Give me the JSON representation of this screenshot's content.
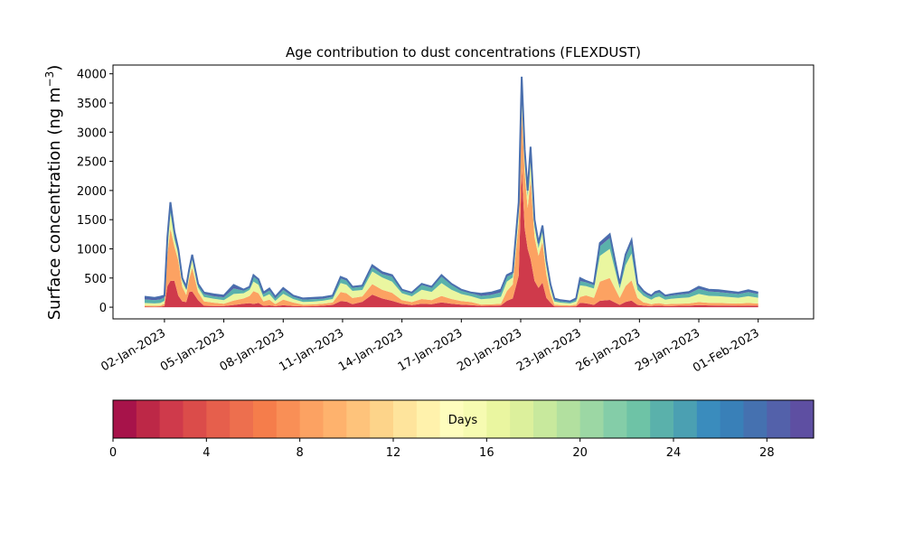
{
  "chart_data": {
    "type": "area",
    "title": "Age contribution to dust concentrations (FLEXDUST)",
    "ylabel_main": "Surface concentration (ng m",
    "ylabel_sup": "−3",
    "ylabel_end": ")",
    "xlabel": "",
    "ylim": [
      -200,
      4150
    ],
    "yticks": [
      0,
      500,
      1000,
      1500,
      2000,
      2500,
      3000,
      3500,
      4000
    ],
    "xlim": [
      -1.6,
      33.8
    ],
    "xticks": [
      {
        "day": 1,
        "label": "02-Jan-2023"
      },
      {
        "day": 4,
        "label": "05-Jan-2023"
      },
      {
        "day": 7,
        "label": "08-Jan-2023"
      },
      {
        "day": 10,
        "label": "11-Jan-2023"
      },
      {
        "day": 13,
        "label": "14-Jan-2023"
      },
      {
        "day": 16,
        "label": "17-Jan-2023"
      },
      {
        "day": 19,
        "label": "20-Jan-2023"
      },
      {
        "day": 22,
        "label": "23-Jan-2023"
      },
      {
        "day": 25,
        "label": "26-Jan-2023"
      },
      {
        "day": 28,
        "label": "29-Jan-2023"
      },
      {
        "day": 31,
        "label": "01-Feb-2023"
      }
    ],
    "x_days_since_01_Jan_2023": [
      0,
      0.5,
      0.8,
      1.0,
      1.15,
      1.3,
      1.5,
      1.7,
      1.9,
      2.1,
      2.25,
      2.4,
      2.7,
      3.0,
      3.5,
      4.0,
      4.5,
      5.0,
      5.3,
      5.5,
      5.75,
      6.0,
      6.3,
      6.6,
      7.0,
      7.5,
      8.0,
      8.5,
      9.0,
      9.5,
      9.9,
      10.2,
      10.5,
      11.0,
      11.5,
      12.0,
      12.5,
      13.0,
      13.5,
      14.0,
      14.5,
      15.0,
      15.5,
      16.0,
      16.5,
      17.0,
      17.5,
      18.0,
      18.3,
      18.6,
      18.9,
      19.05,
      19.2,
      19.35,
      19.5,
      19.7,
      19.9,
      20.1,
      20.3,
      20.5,
      20.7,
      21.0,
      21.5,
      21.8,
      22.0,
      22.3,
      22.7,
      23.0,
      23.5,
      24.0,
      24.3,
      24.6,
      24.9,
      25.2,
      25.4,
      25.6,
      25.8,
      26.0,
      26.3,
      26.6,
      27.0,
      27.5,
      28.0,
      28.5,
      29.0,
      29.5,
      30.0,
      30.5,
      31.0
    ],
    "total_concentration": [
      180,
      160,
      180,
      200,
      1200,
      1800,
      1300,
      1000,
      500,
      350,
      650,
      900,
      400,
      250,
      220,
      200,
      380,
      300,
      350,
      550,
      480,
      250,
      320,
      180,
      330,
      200,
      150,
      160,
      170,
      200,
      520,
      480,
      350,
      370,
      720,
      600,
      550,
      300,
      250,
      400,
      350,
      550,
      400,
      300,
      250,
      230,
      250,
      300,
      550,
      600,
      1800,
      3950,
      2700,
      2000,
      2750,
      1500,
      1100,
      1400,
      800,
      400,
      150,
      120,
      100,
      150,
      500,
      450,
      400,
      1100,
      1250,
      400,
      900,
      1150,
      400,
      280,
      230,
      200,
      260,
      280,
      200,
      220,
      240,
      260,
      350,
      300,
      290,
      270,
      250,
      290,
      250
    ],
    "share_by_age_bin": [
      {
        "days": [
          0,
          4
        ],
        "share": [
          0.05,
          0.05,
          0.05,
          0.1,
          0.3,
          0.25,
          0.35,
          0.2,
          0.2,
          0.25,
          0.4,
          0.3,
          0.3,
          0.1,
          0.1,
          0.1,
          0.1,
          0.2,
          0.2,
          0.1,
          0.15,
          0.1,
          0.1,
          0.1,
          0.1,
          0.1,
          0.1,
          0.1,
          0.15,
          0.2,
          0.2,
          0.2,
          0.15,
          0.25,
          0.3,
          0.25,
          0.2,
          0.2,
          0.15,
          0.15,
          0.15,
          0.15,
          0.15,
          0.15,
          0.15,
          0.1,
          0.1,
          0.1,
          0.2,
          0.25,
          0.3,
          0.6,
          0.5,
          0.5,
          0.3,
          0.3,
          0.3,
          0.3,
          0.2,
          0.2,
          0.1,
          0.1,
          0.1,
          0.1,
          0.15,
          0.15,
          0.1,
          0.1,
          0.1,
          0.1,
          0.1,
          0.1,
          0.1,
          0.1,
          0.1,
          0.1,
          0.1,
          0.1,
          0.1,
          0.1,
          0.1,
          0.1,
          0.1,
          0.1,
          0.1,
          0.1,
          0.1,
          0.1,
          0.1
        ]
      },
      {
        "days": [
          4,
          12
        ],
        "share": [
          0.1,
          0.1,
          0.1,
          0.2,
          0.45,
          0.5,
          0.45,
          0.6,
          0.5,
          0.35,
          0.35,
          0.45,
          0.35,
          0.3,
          0.25,
          0.2,
          0.2,
          0.3,
          0.35,
          0.4,
          0.35,
          0.3,
          0.3,
          0.2,
          0.3,
          0.3,
          0.2,
          0.2,
          0.2,
          0.2,
          0.3,
          0.3,
          0.3,
          0.25,
          0.25,
          0.25,
          0.25,
          0.2,
          0.2,
          0.2,
          0.2,
          0.2,
          0.2,
          0.2,
          0.2,
          0.1,
          0.1,
          0.1,
          0.3,
          0.4,
          0.5,
          0.25,
          0.35,
          0.35,
          0.5,
          0.5,
          0.5,
          0.5,
          0.5,
          0.4,
          0.2,
          0.2,
          0.2,
          0.2,
          0.2,
          0.3,
          0.3,
          0.3,
          0.3,
          0.3,
          0.3,
          0.3,
          0.3,
          0.2,
          0.2,
          0.15,
          0.15,
          0.15,
          0.15,
          0.15,
          0.15,
          0.15,
          0.15,
          0.15,
          0.15,
          0.15,
          0.15,
          0.15,
          0.15
        ]
      },
      {
        "days": [
          12,
          20
        ],
        "share": [
          0.25,
          0.25,
          0.25,
          0.25,
          0.15,
          0.15,
          0.1,
          0.12,
          0.2,
          0.25,
          0.15,
          0.15,
          0.2,
          0.3,
          0.3,
          0.3,
          0.3,
          0.3,
          0.3,
          0.3,
          0.3,
          0.3,
          0.3,
          0.3,
          0.3,
          0.3,
          0.3,
          0.3,
          0.3,
          0.3,
          0.3,
          0.3,
          0.35,
          0.3,
          0.3,
          0.35,
          0.35,
          0.4,
          0.4,
          0.4,
          0.4,
          0.4,
          0.4,
          0.4,
          0.4,
          0.4,
          0.4,
          0.4,
          0.3,
          0.2,
          0.12,
          0.08,
          0.1,
          0.1,
          0.12,
          0.12,
          0.12,
          0.12,
          0.2,
          0.25,
          0.35,
          0.35,
          0.35,
          0.35,
          0.4,
          0.35,
          0.4,
          0.4,
          0.4,
          0.4,
          0.4,
          0.4,
          0.35,
          0.4,
          0.4,
          0.4,
          0.4,
          0.4,
          0.4,
          0.4,
          0.4,
          0.4,
          0.4,
          0.4,
          0.4,
          0.4,
          0.4,
          0.4,
          0.4
        ]
      },
      {
        "days": [
          20,
          26
        ],
        "share": [
          0.35,
          0.35,
          0.35,
          0.3,
          0.07,
          0.07,
          0.07,
          0.05,
          0.07,
          0.1,
          0.07,
          0.07,
          0.1,
          0.2,
          0.2,
          0.25,
          0.25,
          0.15,
          0.1,
          0.15,
          0.15,
          0.2,
          0.2,
          0.25,
          0.2,
          0.2,
          0.25,
          0.25,
          0.2,
          0.2,
          0.15,
          0.15,
          0.15,
          0.15,
          0.1,
          0.1,
          0.15,
          0.15,
          0.2,
          0.2,
          0.2,
          0.2,
          0.2,
          0.2,
          0.2,
          0.25,
          0.25,
          0.25,
          0.15,
          0.1,
          0.05,
          0.04,
          0.03,
          0.03,
          0.05,
          0.05,
          0.05,
          0.05,
          0.07,
          0.1,
          0.2,
          0.2,
          0.2,
          0.2,
          0.15,
          0.15,
          0.15,
          0.15,
          0.15,
          0.15,
          0.15,
          0.15,
          0.2,
          0.2,
          0.2,
          0.25,
          0.25,
          0.25,
          0.25,
          0.25,
          0.25,
          0.25,
          0.25,
          0.25,
          0.25,
          0.25,
          0.25,
          0.25,
          0.25
        ]
      },
      {
        "days": [
          26,
          30
        ],
        "share": [
          0.25,
          0.25,
          0.25,
          0.15,
          0.03,
          0.03,
          0.03,
          0.03,
          0.03,
          0.05,
          0.03,
          0.03,
          0.05,
          0.1,
          0.15,
          0.15,
          0.15,
          0.05,
          0.05,
          0.05,
          0.05,
          0.1,
          0.1,
          0.15,
          0.1,
          0.1,
          0.15,
          0.15,
          0.15,
          0.1,
          0.05,
          0.05,
          0.05,
          0.05,
          0.05,
          0.05,
          0.05,
          0.05,
          0.05,
          0.05,
          0.05,
          0.05,
          0.05,
          0.05,
          0.05,
          0.15,
          0.15,
          0.15,
          0.05,
          0.05,
          0.03,
          0.02,
          0.02,
          0.02,
          0.03,
          0.03,
          0.03,
          0.03,
          0.03,
          0.05,
          0.15,
          0.15,
          0.15,
          0.15,
          0.1,
          0.05,
          0.05,
          0.05,
          0.05,
          0.05,
          0.05,
          0.05,
          0.05,
          0.1,
          0.1,
          0.1,
          0.1,
          0.1,
          0.1,
          0.1,
          0.1,
          0.1,
          0.1,
          0.1,
          0.1,
          0.1,
          0.1,
          0.1,
          0.1
        ]
      }
    ],
    "colorbar": {
      "label": "Days",
      "min": 0,
      "max": 30,
      "ticks": [
        0,
        4,
        8,
        12,
        16,
        20,
        24,
        28
      ],
      "colors": [
        "#a7134a",
        "#bd2847",
        "#cf3a4b",
        "#db4c4a",
        "#e65f4c",
        "#ed6f4e",
        "#f57d4b",
        "#f98f56",
        "#fca262",
        "#feb26d",
        "#fec37b",
        "#fdd48a",
        "#fee49c",
        "#fff2ac",
        "#fefdbd",
        "#f6fbb1",
        "#eaf6a0",
        "#dcf09c",
        "#c8e99d",
        "#b2e09f",
        "#9cd7a4",
        "#84cda8",
        "#6ec3a6",
        "#5ab1ab",
        "#4ba0b2",
        "#3a8cbd",
        "#3980b8",
        "#4571b0",
        "#5361aa",
        "#5e4fa2"
      ]
    },
    "envelope_color": "#4a6fae",
    "grid": false,
    "legend": "colorbar-bottom"
  }
}
